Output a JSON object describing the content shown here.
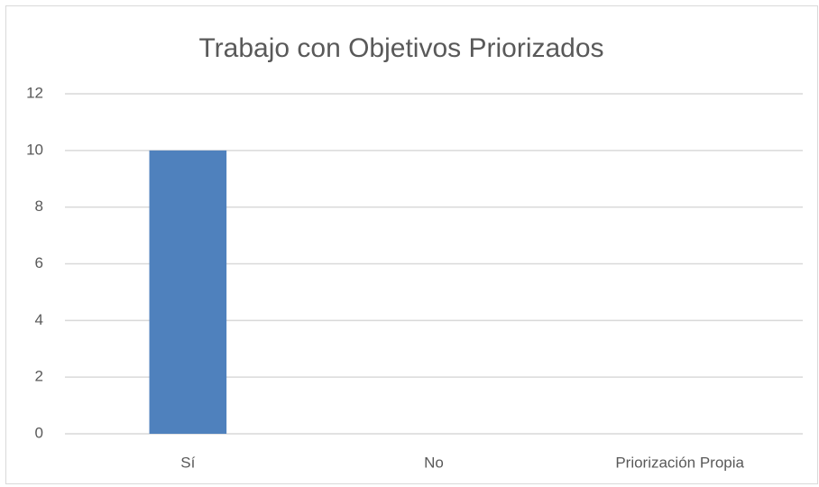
{
  "chart_data": {
    "type": "bar",
    "title": "Trabajo con Objetivos Priorizados",
    "categories": [
      "Sí",
      "No",
      "Priorización Propia"
    ],
    "values": [
      10,
      0,
      0
    ],
    "color": "#4f81bd",
    "ylim": [
      0,
      12
    ],
    "yticks": [
      0,
      2,
      4,
      6,
      8,
      10,
      12
    ],
    "grid": true
  }
}
